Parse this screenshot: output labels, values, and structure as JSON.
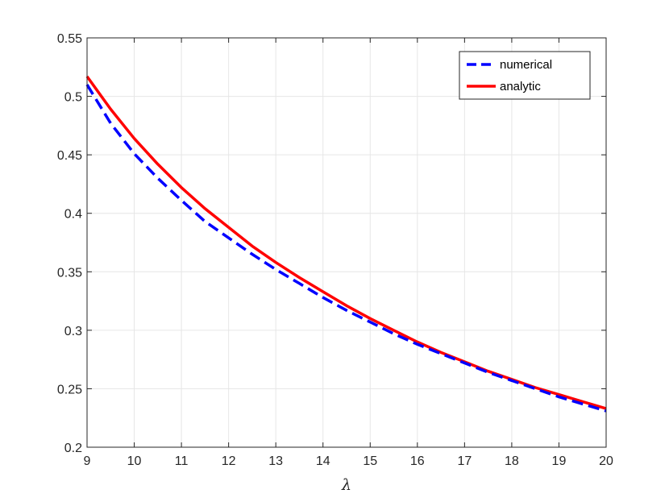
{
  "chart_data": {
    "type": "line",
    "title": "",
    "xlabel": "λ",
    "ylabel": "",
    "xlim": [
      9,
      20
    ],
    "ylim": [
      0.2,
      0.55
    ],
    "grid": true,
    "legend_position": "top-right",
    "x_ticks": [
      9,
      10,
      11,
      12,
      13,
      14,
      15,
      16,
      17,
      18,
      19,
      20
    ],
    "x_tick_labels": [
      "9",
      "10",
      "11",
      "12",
      "13",
      "14",
      "15",
      "16",
      "17",
      "18",
      "19",
      "20"
    ],
    "y_ticks": [
      0.2,
      0.25,
      0.3,
      0.35,
      0.4,
      0.45,
      0.5,
      0.55
    ],
    "y_tick_labels": [
      "0.2",
      "0.25",
      "0.3",
      "0.35",
      "0.4",
      "0.45",
      "0.5",
      "0.55"
    ],
    "x": [
      9,
      9.5,
      10,
      10.5,
      11,
      11.5,
      12,
      12.5,
      13,
      13.5,
      14,
      14.5,
      15,
      15.5,
      16,
      16.5,
      17,
      17.5,
      18,
      18.5,
      19,
      19.5,
      20
    ],
    "series": [
      {
        "name": "numerical",
        "color": "#0000ff",
        "style": "dashed",
        "values": [
          0.51,
          0.477,
          0.451,
          0.43,
          0.411,
          0.393,
          0.379,
          0.365,
          0.352,
          0.34,
          0.328,
          0.317,
          0.307,
          0.297,
          0.288,
          0.28,
          0.272,
          0.264,
          0.257,
          0.25,
          0.243,
          0.237,
          0.231
        ]
      },
      {
        "name": "analytic",
        "color": "#ff0000",
        "style": "solid",
        "values": [
          0.517,
          0.489,
          0.464,
          0.442,
          0.422,
          0.404,
          0.388,
          0.372,
          0.358,
          0.345,
          0.333,
          0.321,
          0.31,
          0.3,
          0.29,
          0.281,
          0.273,
          0.265,
          0.258,
          0.251,
          0.245,
          0.239,
          0.233
        ]
      }
    ]
  }
}
